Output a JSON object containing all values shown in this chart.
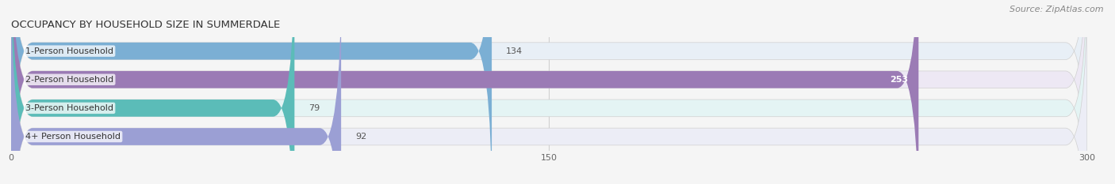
{
  "title": "OCCUPANCY BY HOUSEHOLD SIZE IN SUMMERDALE",
  "source": "Source: ZipAtlas.com",
  "categories": [
    "1-Person Household",
    "2-Person Household",
    "3-Person Household",
    "4+ Person Household"
  ],
  "values": [
    134,
    253,
    79,
    92
  ],
  "bar_colors": [
    "#7bafd4",
    "#9b7bb5",
    "#5bbcb8",
    "#9b9fd4"
  ],
  "bar_bg_colors": [
    "#e8eff6",
    "#ede8f4",
    "#e4f4f4",
    "#ecedf6"
  ],
  "xlim": [
    0,
    300
  ],
  "xticks": [
    0,
    150,
    300
  ],
  "figsize": [
    14.06,
    2.33
  ],
  "dpi": 100,
  "title_fontsize": 9.5,
  "source_fontsize": 8,
  "label_fontsize": 8,
  "value_fontsize": 8,
  "bar_height": 0.6,
  "background_color": "#f5f5f5",
  "bar_edge_color": "#d0d0d0"
}
